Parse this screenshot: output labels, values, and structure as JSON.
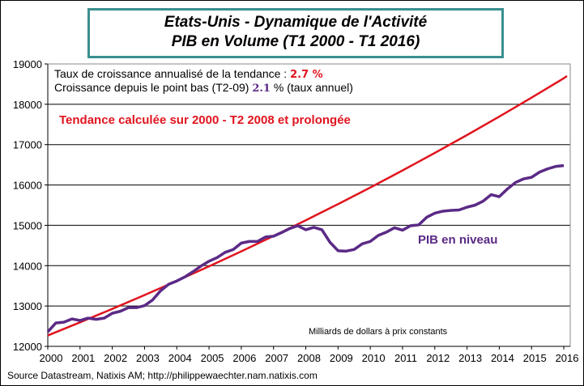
{
  "chart_data": {
    "type": "line",
    "title": [
      "Etats-Unis - Dynamique de l'Activité",
      "PIB en Volume (T1 2000 - T1 2016)"
    ],
    "xlim": [
      2000,
      2016.2
    ],
    "ylim": [
      12000,
      19000
    ],
    "x_ticks": [
      2000,
      2001,
      2002,
      2003,
      2004,
      2005,
      2006,
      2007,
      2008,
      2009,
      2010,
      2011,
      2012,
      2013,
      2014,
      2015,
      2016
    ],
    "y_ticks": [
      12000,
      13000,
      14000,
      15000,
      16000,
      17000,
      18000,
      19000
    ],
    "grid": "horizontal",
    "annotations": {
      "line1_text": "Taux de croissance annualisé de la tendance : ",
      "line1_value": "2.7 %",
      "line2_text": "Croissance depuis le point bas (T2-09) ",
      "line2_value": "2.1",
      "line2_suffix": " % (taux annuel)",
      "trend_label": "Tendance calculée  sur 2000 - T2 2008 et prolongée",
      "pib_label": "PIB en niveau",
      "units": "Milliards de dollars à prix constants"
    },
    "series": [
      {
        "name": "PIB en niveau",
        "color": "#5b2a86",
        "x_start": 2000,
        "x_step": 0.25,
        "values": [
          12360,
          12580,
          12600,
          12680,
          12640,
          12700,
          12670,
          12700,
          12820,
          12870,
          12960,
          12960,
          13010,
          13150,
          13380,
          13540,
          13620,
          13720,
          13850,
          13990,
          14110,
          14200,
          14330,
          14400,
          14560,
          14600,
          14600,
          14710,
          14730,
          14820,
          14920,
          14990,
          14890,
          14950,
          14890,
          14580,
          14370,
          14360,
          14400,
          14540,
          14600,
          14750,
          14830,
          14940,
          14880,
          14990,
          15010,
          15200,
          15300,
          15350,
          15370,
          15380,
          15450,
          15500,
          15600,
          15760,
          15710,
          15900,
          16060,
          16150,
          16190,
          16320,
          16400,
          16460,
          16480
        ]
      },
      {
        "name": "Tendance",
        "color": "#e0141e",
        "x": [
          2000,
          2001,
          2002,
          2003,
          2004,
          2005,
          2006,
          2007,
          2008,
          2009,
          2010,
          2011,
          2012,
          2013,
          2014,
          2015,
          2016,
          2016.1
        ],
        "values": [
          12270,
          12595,
          12929,
          13271,
          13623,
          13984,
          14354,
          14735,
          15125,
          15526,
          15937,
          16360,
          16793,
          17238,
          17695,
          18164,
          18645,
          18700
        ]
      }
    ],
    "colors": {
      "accent_red": "#e0141e",
      "accent_purple": "#5b2a86",
      "title_border": "#3a8f8f"
    }
  },
  "source": "Source Datastream, Natixis AM;  http://philippewaechter.nam.natixis.com"
}
